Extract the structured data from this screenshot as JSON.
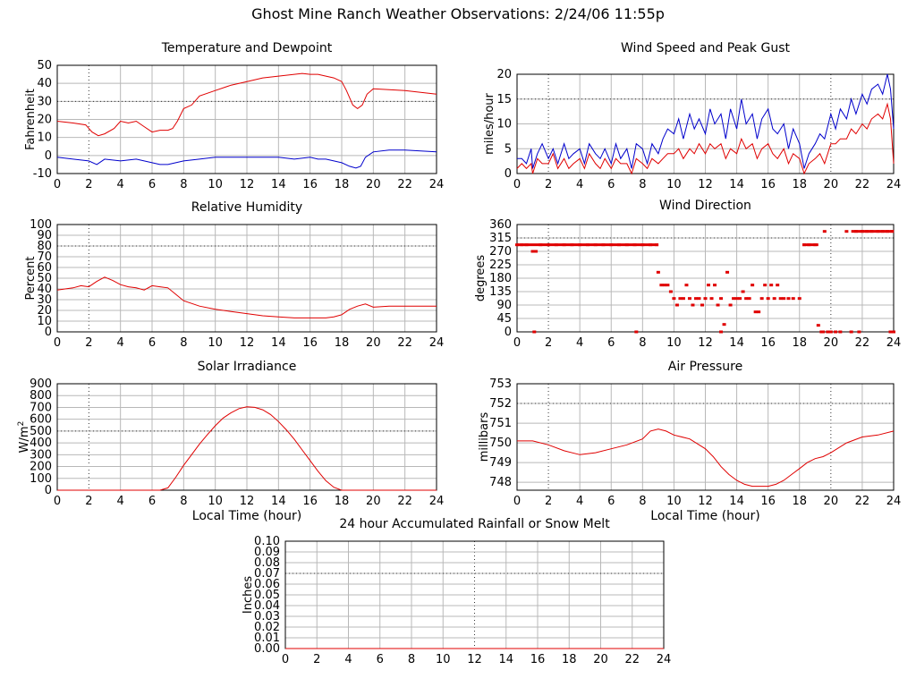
{
  "page": {
    "title": "Ghost Mine Ranch Weather Observations: 2/24/06 11:55p"
  },
  "colors": {
    "series_red": "#e00000",
    "series_blue": "#0000cc",
    "grid": "#b8b8b8",
    "axis": "#000000"
  },
  "chart_data": [
    {
      "id": "temp",
      "type": "line",
      "title": "Temperature and Dewpoint",
      "xlabel": "",
      "ylabel": "Fahrenheit",
      "xlim": [
        0,
        24
      ],
      "ylim": [
        -10,
        50
      ],
      "xticks": [
        0,
        2,
        4,
        6,
        8,
        10,
        12,
        14,
        16,
        18,
        20,
        22,
        24
      ],
      "yticks": [
        -10,
        0,
        10,
        20,
        30,
        40,
        50
      ],
      "grid": true,
      "series": [
        {
          "color": "red",
          "x": [
            0,
            1,
            1.8,
            2.2,
            2.6,
            3,
            3.6,
            4,
            4.5,
            5,
            5.5,
            6,
            6.5,
            7,
            7.3,
            7.6,
            8,
            8.5,
            9,
            10,
            11,
            12,
            13,
            14,
            15,
            15.5,
            16,
            16.5,
            17,
            17.5,
            18,
            18.3,
            18.7,
            19,
            19.3,
            19.6,
            20,
            21,
            22,
            23,
            24
          ],
          "y": [
            19,
            18,
            17,
            13,
            11,
            12,
            15,
            19,
            18,
            19,
            16,
            13,
            14,
            14,
            15,
            19,
            26,
            28,
            33,
            36,
            39,
            41,
            43,
            44,
            45,
            45.5,
            45,
            45,
            44,
            43,
            41,
            36,
            28,
            26,
            28,
            34,
            37,
            36.5,
            36,
            35,
            34
          ]
        },
        {
          "color": "blue",
          "x": [
            0,
            1,
            2,
            2.5,
            3,
            4,
            5,
            6,
            6.5,
            7,
            7.5,
            8,
            9,
            10,
            11,
            12,
            13,
            14,
            15,
            16,
            16.5,
            17,
            17.5,
            18,
            18.5,
            18.9,
            19.2,
            19.5,
            20,
            21,
            22,
            23,
            24
          ],
          "y": [
            -1,
            -2,
            -3,
            -5,
            -2,
            -3,
            -2,
            -4,
            -5,
            -5,
            -4,
            -3,
            -2,
            -1,
            -1,
            -1,
            -1,
            -1,
            -2,
            -1,
            -2,
            -2,
            -3,
            -4,
            -6,
            -7,
            -6,
            -1,
            2,
            3,
            3,
            2.5,
            2
          ]
        }
      ]
    },
    {
      "id": "wind",
      "type": "line",
      "title": "Wind Speed and Peak Gust",
      "xlabel": "",
      "ylabel": "miles/hour",
      "xlim": [
        0,
        24
      ],
      "ylim": [
        0,
        20
      ],
      "xticks": [
        0,
        2,
        4,
        6,
        8,
        10,
        12,
        14,
        16,
        18,
        20,
        22,
        24
      ],
      "yticks": [
        0,
        5,
        10,
        15,
        20
      ],
      "grid": true,
      "series": [
        {
          "color": "blue",
          "x": [
            0,
            0.3,
            0.6,
            0.9,
            1.0,
            1.3,
            1.6,
            2.0,
            2.3,
            2.6,
            3.0,
            3.3,
            3.6,
            4.0,
            4.3,
            4.6,
            5.0,
            5.3,
            5.6,
            6.0,
            6.3,
            6.6,
            7.0,
            7.3,
            7.6,
            8.0,
            8.3,
            8.6,
            9.0,
            9.3,
            9.6,
            10.0,
            10.3,
            10.6,
            11.0,
            11.3,
            11.6,
            12.0,
            12.3,
            12.6,
            13.0,
            13.3,
            13.6,
            14.0,
            14.3,
            14.6,
            15.0,
            15.3,
            15.6,
            16.0,
            16.3,
            16.6,
            17.0,
            17.3,
            17.6,
            18.0,
            18.3,
            18.6,
            19.0,
            19.3,
            19.6,
            20.0,
            20.3,
            20.6,
            21.0,
            21.3,
            21.6,
            22.0,
            22.3,
            22.6,
            23.0,
            23.3,
            23.6,
            23.8,
            24.0
          ],
          "y": [
            3,
            3,
            2,
            5,
            1,
            4,
            6,
            3,
            5,
            2,
            6,
            3,
            4,
            5,
            2,
            6,
            4,
            3,
            5,
            2,
            6,
            3,
            5,
            1,
            6,
            5,
            2,
            6,
            4,
            7,
            9,
            8,
            11,
            7,
            12,
            9,
            11,
            8,
            13,
            10,
            12,
            7,
            13,
            9,
            15,
            10,
            12,
            7,
            11,
            13,
            9,
            8,
            10,
            5,
            9,
            6,
            1,
            4,
            6,
            8,
            7,
            12,
            9,
            13,
            11,
            15,
            12,
            16,
            14,
            17,
            18,
            16,
            20,
            17,
            9
          ]
        },
        {
          "color": "red",
          "x": [
            0,
            0.3,
            0.6,
            0.9,
            1.0,
            1.3,
            1.6,
            2.0,
            2.3,
            2.6,
            3.0,
            3.3,
            3.6,
            4.0,
            4.3,
            4.6,
            5.0,
            5.3,
            5.6,
            6.0,
            6.3,
            6.6,
            7.0,
            7.3,
            7.6,
            8.0,
            8.3,
            8.6,
            9.0,
            9.3,
            9.6,
            10.0,
            10.3,
            10.6,
            11.0,
            11.3,
            11.6,
            12.0,
            12.3,
            12.6,
            13.0,
            13.3,
            13.6,
            14.0,
            14.3,
            14.6,
            15.0,
            15.3,
            15.6,
            16.0,
            16.3,
            16.6,
            17.0,
            17.3,
            17.6,
            18.0,
            18.3,
            18.6,
            19.0,
            19.3,
            19.6,
            20.0,
            20.3,
            20.6,
            21.0,
            21.3,
            21.6,
            22.0,
            22.3,
            22.6,
            23.0,
            23.3,
            23.6,
            23.8,
            24.0
          ],
          "y": [
            1,
            2,
            1,
            2,
            0,
            3,
            2,
            2,
            4,
            1,
            3,
            1,
            2,
            3,
            1,
            4,
            2,
            1,
            3,
            1,
            3,
            2,
            2,
            0,
            3,
            2,
            1,
            3,
            2,
            3,
            4,
            4,
            5,
            3,
            5,
            4,
            6,
            4,
            6,
            5,
            6,
            3,
            5,
            4,
            7,
            5,
            6,
            3,
            5,
            6,
            4,
            3,
            5,
            2,
            4,
            3,
            0,
            2,
            3,
            4,
            2,
            6,
            6,
            7,
            7,
            9,
            8,
            10,
            9,
            11,
            12,
            11,
            14,
            11,
            2
          ]
        }
      ]
    },
    {
      "id": "humidity",
      "type": "line",
      "title": "Relative Humidity",
      "xlabel": "",
      "ylabel": "Percent",
      "xlim": [
        0,
        24
      ],
      "ylim": [
        0,
        100
      ],
      "xticks": [
        0,
        2,
        4,
        6,
        8,
        10,
        12,
        14,
        16,
        18,
        20,
        22,
        24
      ],
      "yticks": [
        0,
        10,
        20,
        30,
        40,
        50,
        60,
        70,
        80,
        90,
        100
      ],
      "grid": true,
      "series": [
        {
          "color": "red",
          "x": [
            0,
            0.5,
            1,
            1.5,
            2,
            2.5,
            3,
            3.5,
            4,
            4.5,
            5,
            5.5,
            6,
            6.5,
            7,
            7.5,
            8,
            9,
            10,
            11,
            12,
            13,
            14,
            15,
            16,
            17,
            17.5,
            18,
            18.5,
            19,
            19.5,
            20,
            21,
            22,
            23,
            24
          ],
          "y": [
            39,
            40,
            41,
            43,
            42,
            47,
            51,
            48,
            44,
            42,
            41,
            39,
            43,
            42,
            41,
            35,
            29,
            24,
            21,
            19,
            17,
            15,
            14,
            13,
            13,
            13,
            14,
            16,
            21,
            24,
            26,
            23,
            24,
            24,
            24,
            24
          ]
        }
      ]
    },
    {
      "id": "direction",
      "type": "scatter",
      "title": "Wind Direction",
      "xlabel": "",
      "ylabel": "degrees",
      "xlim": [
        0,
        24
      ],
      "ylim": [
        0,
        360
      ],
      "xticks": [
        0,
        2,
        4,
        6,
        8,
        10,
        12,
        14,
        16,
        18,
        20,
        22,
        24
      ],
      "yticks": [
        0,
        45,
        90,
        135,
        180,
        225,
        270,
        315,
        360
      ],
      "grid": true,
      "series": [
        {
          "color": "red",
          "x": [
            0,
            0.3,
            0.6,
            1.0,
            1.2,
            1.5,
            2,
            2.5,
            3,
            3.5,
            4,
            4.5,
            5,
            5.5,
            6,
            6.5,
            7,
            7.5,
            8,
            8.5,
            8.9,
            9.0,
            9.2,
            9.4,
            9.6,
            9.8,
            10.0,
            10.2,
            10.4,
            10.6,
            10.8,
            11.0,
            11.2,
            11.4,
            11.6,
            11.8,
            12.0,
            12.2,
            12.4,
            12.6,
            12.8,
            13.0,
            13.2,
            13.4,
            13.6,
            13.8,
            14.0,
            14.2,
            14.4,
            14.6,
            14.8,
            15.0,
            15.2,
            15.4,
            15.6,
            15.8,
            16.0,
            16.2,
            16.4,
            16.6,
            16.8,
            17.0,
            17.3,
            17.6,
            18.0,
            18.3,
            18.6,
            19.0,
            19.2,
            19.4,
            19.6,
            19.8,
            20.0,
            20.3,
            20.6,
            21.0,
            21.3,
            21.6,
            22.0,
            22.3,
            22.6,
            23.0,
            23.3,
            23.6,
            23.9,
            24.0,
            1.1,
            7.6,
            13.0,
            19.5,
            21.8,
            23.8
          ],
          "y": [
            292,
            292,
            292,
            270,
            270,
            292,
            292,
            292,
            292,
            292,
            292,
            292,
            292,
            292,
            292,
            292,
            292,
            292,
            292,
            292,
            292,
            200,
            157,
            157,
            157,
            135,
            112,
            90,
            112,
            112,
            157,
            112,
            90,
            112,
            112,
            90,
            112,
            157,
            112,
            157,
            90,
            112,
            25,
            200,
            90,
            112,
            112,
            112,
            135,
            112,
            112,
            157,
            67,
            67,
            112,
            157,
            112,
            157,
            112,
            157,
            112,
            112,
            112,
            112,
            112,
            292,
            292,
            292,
            22,
            0,
            337,
            0,
            0,
            0,
            0,
            337,
            0,
            337,
            337,
            337,
            337,
            337,
            337,
            337,
            337,
            0,
            0,
            0,
            0,
            0,
            0,
            0
          ]
        }
      ]
    },
    {
      "id": "solar",
      "type": "line",
      "title": "Solar Irradiance",
      "xlabel": "Local Time (hour)",
      "ylabel": "W/m",
      "ylabel_sup": "2",
      "xlim": [
        0,
        24
      ],
      "ylim": [
        0,
        900
      ],
      "xticks": [
        0,
        2,
        4,
        6,
        8,
        10,
        12,
        14,
        16,
        18,
        20,
        22,
        24
      ],
      "yticks": [
        0,
        100,
        200,
        300,
        400,
        500,
        600,
        700,
        800,
        900
      ],
      "grid": true,
      "series": [
        {
          "color": "red",
          "x": [
            0,
            6.5,
            7,
            7.5,
            8,
            8.5,
            9,
            9.5,
            10,
            10.5,
            11,
            11.5,
            12,
            12.5,
            13,
            13.5,
            14,
            14.5,
            15,
            15.5,
            16,
            16.5,
            17,
            17.5,
            18,
            24
          ],
          "y": [
            0,
            0,
            20,
            110,
            210,
            300,
            390,
            470,
            545,
            610,
            655,
            690,
            705,
            700,
            680,
            640,
            580,
            510,
            430,
            340,
            250,
            160,
            80,
            25,
            0,
            0
          ]
        }
      ]
    },
    {
      "id": "pressure",
      "type": "line",
      "title": "Air Pressure",
      "xlabel": "Local Time (hour)",
      "ylabel": "millibars",
      "xlim": [
        0,
        24
      ],
      "ylim": [
        747.6,
        753
      ],
      "xticks": [
        0,
        2,
        4,
        6,
        8,
        10,
        12,
        14,
        16,
        18,
        20,
        22,
        24
      ],
      "yticks": [
        748,
        749,
        750,
        751,
        752,
        753
      ],
      "grid": true,
      "series": [
        {
          "color": "red",
          "x": [
            0,
            1,
            2,
            3,
            4,
            5,
            6,
            7,
            8,
            8.5,
            9,
            9.5,
            10,
            11,
            12,
            12.5,
            13,
            13.5,
            14,
            14.5,
            15,
            15.5,
            16,
            16.5,
            17,
            17.5,
            18,
            18.5,
            19,
            19.5,
            20,
            21,
            22,
            23,
            24
          ],
          "y": [
            750.1,
            750.1,
            749.9,
            749.6,
            749.4,
            749.5,
            749.7,
            749.9,
            750.2,
            750.6,
            750.7,
            750.6,
            750.4,
            750.2,
            749.7,
            749.3,
            748.8,
            748.4,
            748.1,
            747.9,
            747.8,
            747.8,
            747.8,
            747.9,
            748.1,
            748.4,
            748.7,
            749.0,
            749.2,
            749.3,
            749.5,
            750.0,
            750.3,
            750.4,
            750.6
          ]
        }
      ]
    },
    {
      "id": "rain",
      "type": "line",
      "title": "24 hour Accumulated Rainfall or Snow Melt",
      "xlabel": "",
      "ylabel": "Inches",
      "xlim": [
        0,
        24
      ],
      "ylim": [
        0,
        0.1
      ],
      "xticks": [
        0,
        2,
        4,
        6,
        8,
        10,
        12,
        14,
        16,
        18,
        20,
        22,
        24
      ],
      "yticks": [
        0,
        0.01,
        0.02,
        0.03,
        0.04,
        0.05,
        0.06,
        0.07,
        0.08,
        0.09,
        0.1
      ],
      "yticklabels": [
        "0.00",
        "0.01",
        "0.02",
        "0.03",
        "0.04",
        "0.05",
        "0.06",
        "0.07",
        "0.08",
        "0.09",
        "0.10"
      ],
      "grid": true,
      "series": [
        {
          "color": "red",
          "x": [
            0,
            24
          ],
          "y": [
            0,
            0
          ]
        }
      ]
    }
  ]
}
